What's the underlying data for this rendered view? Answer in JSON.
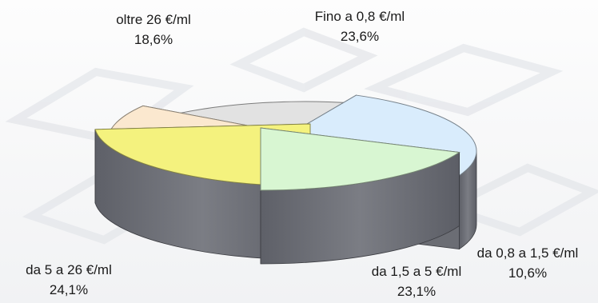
{
  "chart_data": {
    "type": "pie",
    "style": "exploded 3d pie",
    "title": "",
    "categories": [
      "Fino a 0,8 €/ml",
      "da 0,8 a 1,5 €/ml",
      "da 1,5 a 5 €/ml",
      "da 5 a 26 €/ml",
      "oltre 26 €/ml"
    ],
    "values": [
      23.6,
      10.6,
      23.1,
      24.1,
      18.6
    ],
    "value_labels": [
      "23,6%",
      "10,6%",
      "23,1%",
      "24,1%",
      "18,6%"
    ],
    "colors": [
      "#f4f27e",
      "#fbe8cf",
      "#e2e2e2",
      "#d9ecfc",
      "#d8f6d2"
    ],
    "legend": "none",
    "unit": "%"
  }
}
